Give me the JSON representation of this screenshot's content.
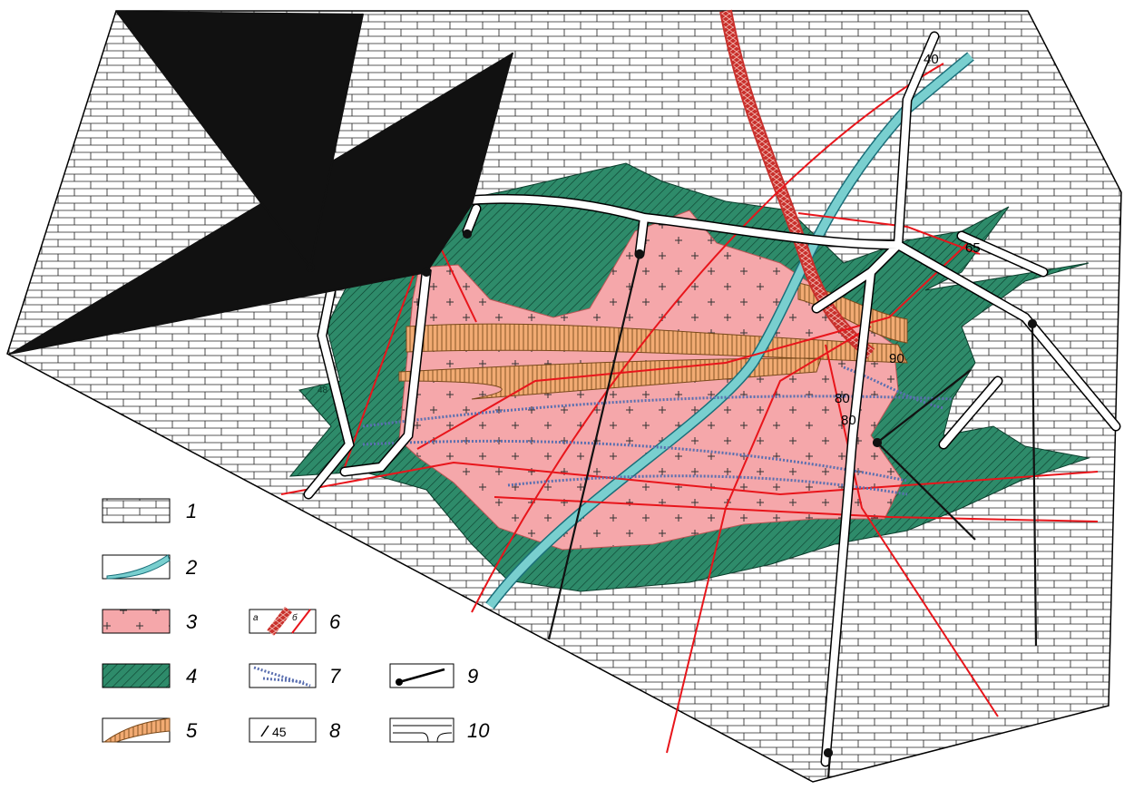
{
  "map": {
    "dip_labels": [
      "40",
      "65",
      "90",
      "80",
      "80",
      "48"
    ]
  },
  "legend": {
    "numbers": [
      "1",
      "2",
      "3",
      "4",
      "5",
      "6",
      "7",
      "8",
      "9",
      "10"
    ],
    "fault_labels": [
      "а",
      "б"
    ],
    "sample_dip": "45"
  }
}
